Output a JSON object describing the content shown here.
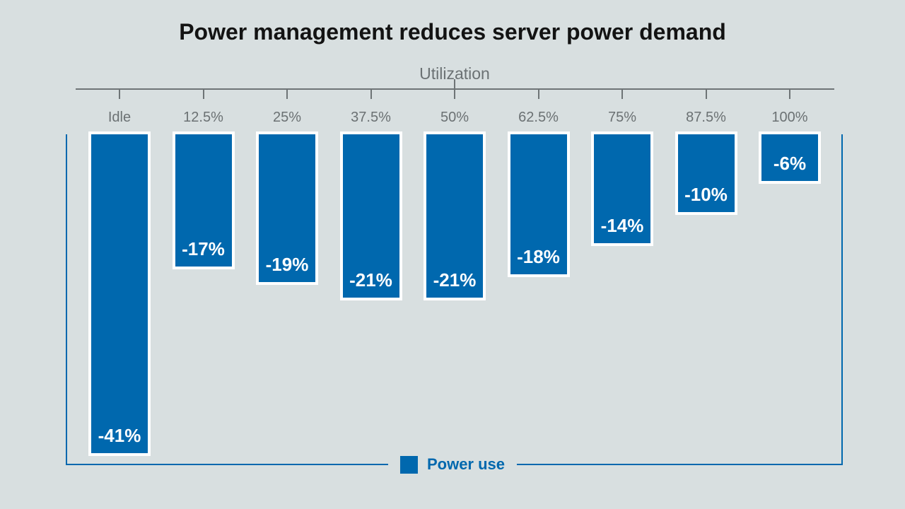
{
  "title": "Power management reduces server power demand",
  "axis_title": "Utilization",
  "legend": {
    "label": "Power use"
  },
  "colors": {
    "background": "#d8dfe0",
    "bar": "#0068ae",
    "bar_border": "#ffffff",
    "frame": "#0068ae",
    "axis": "#6e7476",
    "tick_label": "#6b7173",
    "title_text": "#131313",
    "value_label": "#ffffff",
    "legend_text": "#0068ae"
  },
  "chart_data": {
    "type": "bar",
    "title": "Power management reduces server power demand",
    "xlabel": "Utilization",
    "ylabel": "",
    "categories": [
      "Idle",
      "12.5%",
      "25%",
      "37.5%",
      "50%",
      "62.5%",
      "75%",
      "87.5%",
      "100%"
    ],
    "series": [
      {
        "name": "Power use",
        "values": [
          -41,
          -17,
          -19,
          -21,
          -21,
          -18,
          -14,
          -10,
          -6
        ],
        "value_labels": [
          "-41%",
          "-17%",
          "-19%",
          "-21%",
          "-21%",
          "-18%",
          "-14%",
          "-10%",
          "-6%"
        ]
      }
    ],
    "ylim": [
      -45,
      0
    ],
    "grid": false,
    "bars_hang_from_top": true,
    "legend_position": "bottom-center"
  }
}
